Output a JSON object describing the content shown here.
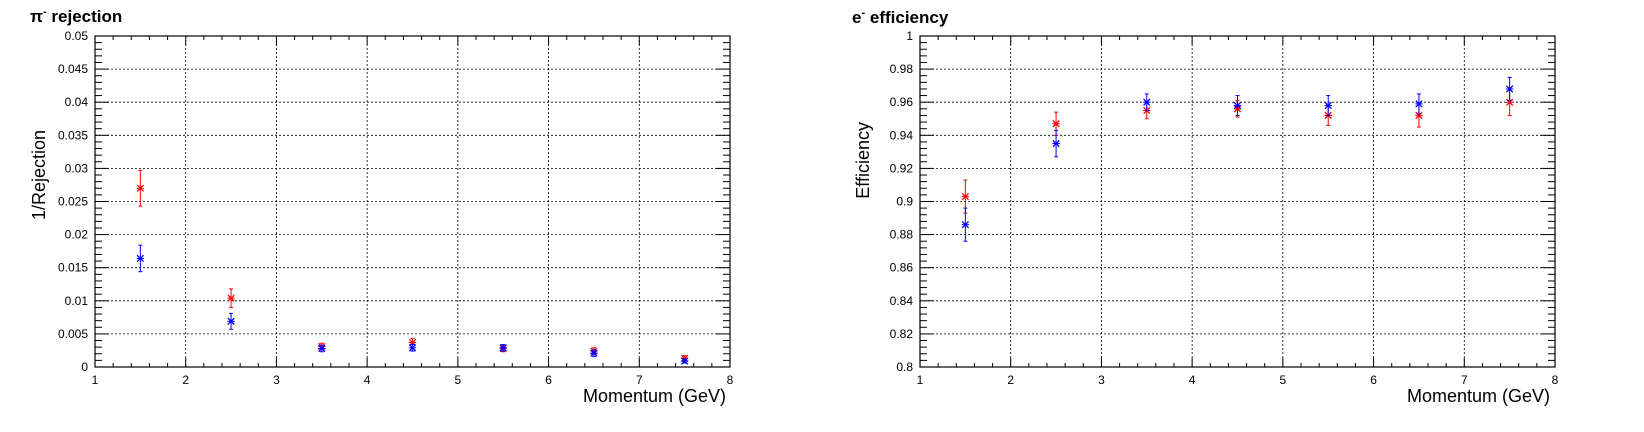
{
  "chart_data": [
    {
      "type": "scatter",
      "title": "π- rejection",
      "title_main": "π",
      "title_sup": "-",
      "title_rest": " rejection",
      "xlabel": "Momentum (GeV)",
      "ylabel": "1/Rejection",
      "xlim": [
        1,
        8
      ],
      "ylim": [
        0,
        0.05
      ],
      "grid": true,
      "xticks": [
        "1",
        "2",
        "3",
        "4",
        "5",
        "6",
        "7",
        "8"
      ],
      "yticks": [
        "0",
        "0.005",
        "0.01",
        "0.015",
        "0.02",
        "0.025",
        "0.03",
        "0.035",
        "0.04",
        "0.045",
        "0.05"
      ],
      "series": [
        {
          "color": "#ff0000",
          "points": [
            {
              "x": 1.5,
              "y": 0.027,
              "err": 0.0027
            },
            {
              "x": 2.5,
              "y": 0.0104,
              "err": 0.0014
            },
            {
              "x": 3.5,
              "y": 0.0031,
              "err": 0.0005
            },
            {
              "x": 4.5,
              "y": 0.0037,
              "err": 0.0006
            },
            {
              "x": 5.5,
              "y": 0.0028,
              "err": 0.0005
            },
            {
              "x": 6.5,
              "y": 0.0024,
              "err": 0.0005
            },
            {
              "x": 7.5,
              "y": 0.0013,
              "err": 0.0004
            }
          ]
        },
        {
          "color": "#0000ff",
          "points": [
            {
              "x": 1.5,
              "y": 0.0164,
              "err": 0.002
            },
            {
              "x": 2.5,
              "y": 0.0069,
              "err": 0.0012
            },
            {
              "x": 3.5,
              "y": 0.0028,
              "err": 0.0005
            },
            {
              "x": 4.5,
              "y": 0.0029,
              "err": 0.0005
            },
            {
              "x": 5.5,
              "y": 0.0029,
              "err": 0.0005
            },
            {
              "x": 6.5,
              "y": 0.0021,
              "err": 0.0005
            },
            {
              "x": 7.5,
              "y": 0.0009,
              "err": 0.0003
            }
          ]
        }
      ]
    },
    {
      "type": "scatter",
      "title": "e- efficiency",
      "title_main": "e",
      "title_sup": "-",
      "title_rest": " efficiency",
      "xlabel": "Momentum (GeV)",
      "ylabel": "Efficiency",
      "xlim": [
        1,
        8
      ],
      "ylim": [
        0.8,
        1
      ],
      "grid": true,
      "xticks": [
        "1",
        "2",
        "3",
        "4",
        "5",
        "6",
        "7",
        "8"
      ],
      "yticks": [
        "0.8",
        "0.82",
        "0.84",
        "0.86",
        "0.88",
        "0.9",
        "0.92",
        "0.94",
        "0.96",
        "0.98",
        "1"
      ],
      "series": [
        {
          "color": "#ff0000",
          "points": [
            {
              "x": 1.5,
              "y": 0.903,
              "err": 0.01
            },
            {
              "x": 2.5,
              "y": 0.947,
              "err": 0.007
            },
            {
              "x": 3.5,
              "y": 0.955,
              "err": 0.005
            },
            {
              "x": 4.5,
              "y": 0.956,
              "err": 0.005
            },
            {
              "x": 5.5,
              "y": 0.952,
              "err": 0.006
            },
            {
              "x": 6.5,
              "y": 0.952,
              "err": 0.007
            },
            {
              "x": 7.5,
              "y": 0.96,
              "err": 0.008
            }
          ]
        },
        {
          "color": "#0000ff",
          "points": [
            {
              "x": 1.5,
              "y": 0.886,
              "err": 0.01
            },
            {
              "x": 2.5,
              "y": 0.935,
              "err": 0.008
            },
            {
              "x": 3.5,
              "y": 0.96,
              "err": 0.005
            },
            {
              "x": 4.5,
              "y": 0.958,
              "err": 0.006
            },
            {
              "x": 5.5,
              "y": 0.958,
              "err": 0.006
            },
            {
              "x": 6.5,
              "y": 0.959,
              "err": 0.006
            },
            {
              "x": 7.5,
              "y": 0.968,
              "err": 0.007
            }
          ]
        }
      ]
    }
  ]
}
